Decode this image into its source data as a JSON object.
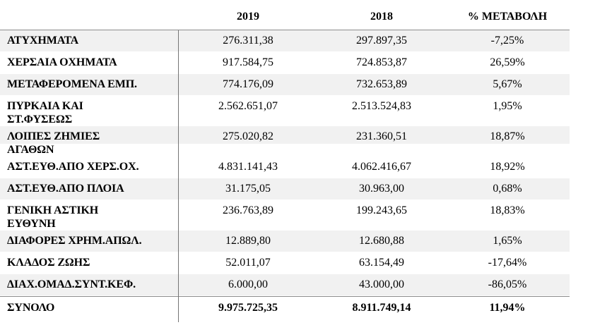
{
  "table": {
    "header": {
      "col_2019": "2019",
      "col_2018": "2018",
      "col_change": "% ΜΕΤΑΒΟΛΗ"
    },
    "rows": [
      {
        "label": "ΑΤΥΧΗΜΑΤΑ",
        "y2019": "276.311,38",
        "y2018": "297.897,35",
        "change": "-7,25%",
        "shaded": true
      },
      {
        "label": "ΧΕΡΣΑΙΑ ΟΧΗΜΑΤΑ",
        "y2019": "917.584,75",
        "y2018": "724.853,87",
        "change": "26,59%"
      },
      {
        "label": "ΜΕΤΑΦΕΡΟΜΕΝΑ ΕΜΠ.",
        "y2019": "774.176,09",
        "y2018": "732.653,89",
        "change": "5,67%",
        "shaded": true
      },
      {
        "label": "ΠΥΡΚΑΙΑ ΚΑΙ\nΣΤ.ΦΥΣΕΩΣ",
        "y2019": "2.562.651,07",
        "y2018": "2.513.524,83",
        "change": "1,95%",
        "tall": true
      },
      {
        "label": "ΛΟΙΠΕΣ ΖΗΜΙΕΣ\nΑΓΑΘΩΝ",
        "y2019": "275.020,82",
        "y2018": "231.360,51",
        "change": "18,87%",
        "shaded": true,
        "band": true,
        "tall": true
      },
      {
        "label": "ΑΣΤ.ΕΥΘ.ΑΠΟ ΧΕΡΣ.ΟΧ.",
        "y2019": "4.831.141,43",
        "y2018": "4.062.416,67",
        "change": "18,92%"
      },
      {
        "label": "ΑΣΤ.ΕΥΘ.ΑΠΟ ΠΛΟΙΑ",
        "y2019": "31.175,05",
        "y2018": "30.963,00",
        "change": "0,68%",
        "shaded": true
      },
      {
        "label": "ΓΕΝΙΚΗ ΑΣΤΙΚΗ\nΕΥΘΥΝΗ",
        "y2019": "236.763,89",
        "y2018": "199.243,65",
        "change": "18,83%",
        "tall": true
      },
      {
        "label": "ΔΙΑΦΟΡΕΣ ΧΡΗΜ.ΑΠΩΛ.",
        "y2019": "12.889,80",
        "y2018": "12.680,88",
        "change": "1,65%",
        "shaded": true
      },
      {
        "label": "ΚΛΑΔΟΣ ΖΩΗΣ",
        "y2019": "52.011,07",
        "y2018": "63.154,49",
        "change": "-17,64%"
      },
      {
        "label": "ΔΙΑΧ.ΟΜΑΔ.ΣΥΝΤ.ΚΕΦ.",
        "y2019": "6.000,00",
        "y2018": "43.000,00",
        "change": "-86,05%",
        "shaded": true
      },
      {
        "label": "ΣΥΝΟΛΟ",
        "y2019": "9.975.725,35",
        "y2018": "8.911.749,14",
        "change": "11,94%",
        "total": true
      }
    ]
  },
  "colors": {
    "row_shade": "#f1f1f1",
    "border_line": "#8c8c8c",
    "divider_line": "#757575",
    "text": "#000000"
  }
}
